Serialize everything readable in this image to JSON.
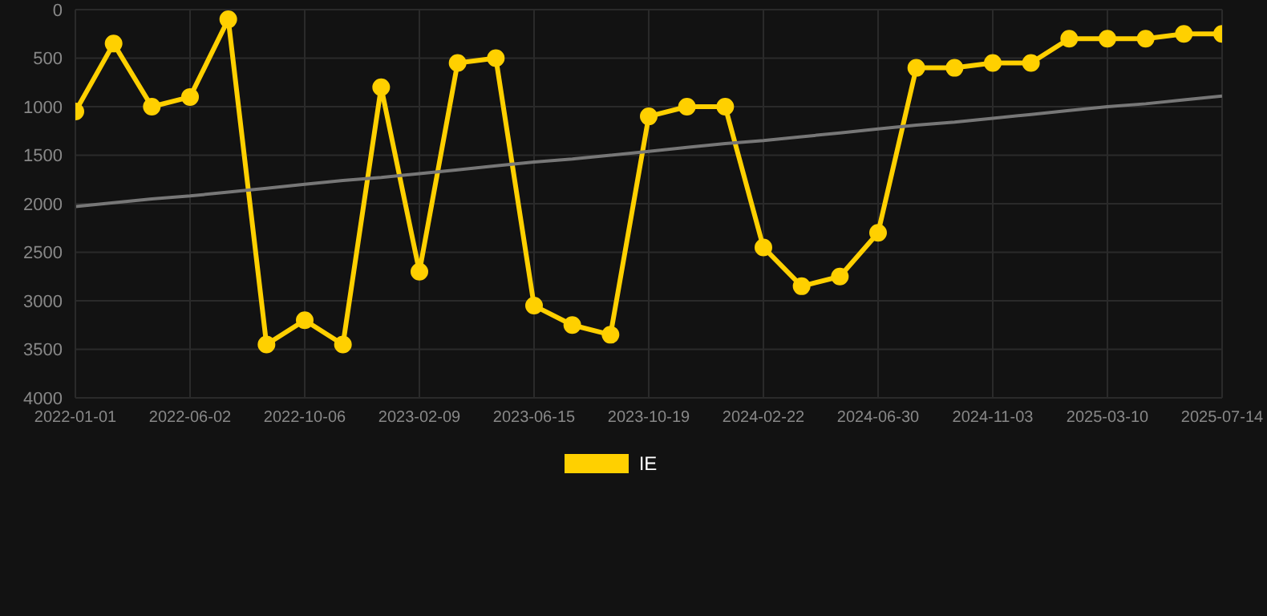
{
  "chart_data": {
    "type": "line",
    "categories": [
      "2022-01-01",
      null,
      null,
      "2022-06-02",
      null,
      null,
      "2022-10-06",
      null,
      null,
      "2023-02-09",
      null,
      null,
      "2023-06-15",
      null,
      null,
      "2023-10-19",
      null,
      null,
      "2024-02-22",
      null,
      null,
      "2024-06-30",
      null,
      null,
      "2024-11-03",
      null,
      null,
      "2025-03-10",
      null,
      null,
      "2025-07-14"
    ],
    "series": [
      {
        "name": "IE",
        "color": "#ffd000",
        "marker": "circle",
        "values": [
          1050,
          350,
          1000,
          900,
          100,
          3450,
          3200,
          3450,
          800,
          2700,
          550,
          500,
          3050,
          3250,
          3350,
          1100,
          1000,
          1000,
          2450,
          2850,
          2750,
          2300,
          600,
          600,
          550,
          550,
          300,
          300,
          300,
          250,
          250
        ]
      },
      {
        "type": "line",
        "color": "#777777",
        "marker": "none",
        "values": [
          2030,
          1990,
          1950,
          1920,
          1880,
          1840,
          1800,
          1760,
          1730,
          1690,
          1650,
          1610,
          1570,
          1540,
          1500,
          1460,
          1420,
          1380,
          1350,
          1310,
          1270,
          1230,
          1190,
          1160,
          1120,
          1080,
          1040,
          1000,
          970,
          930,
          890
        ]
      }
    ],
    "ylim": [
      4000,
      0
    ],
    "yticks": [
      0,
      500,
      1000,
      1500,
      2000,
      2500,
      3000,
      3500,
      4000
    ],
    "grid": true,
    "legend": "bottom"
  }
}
